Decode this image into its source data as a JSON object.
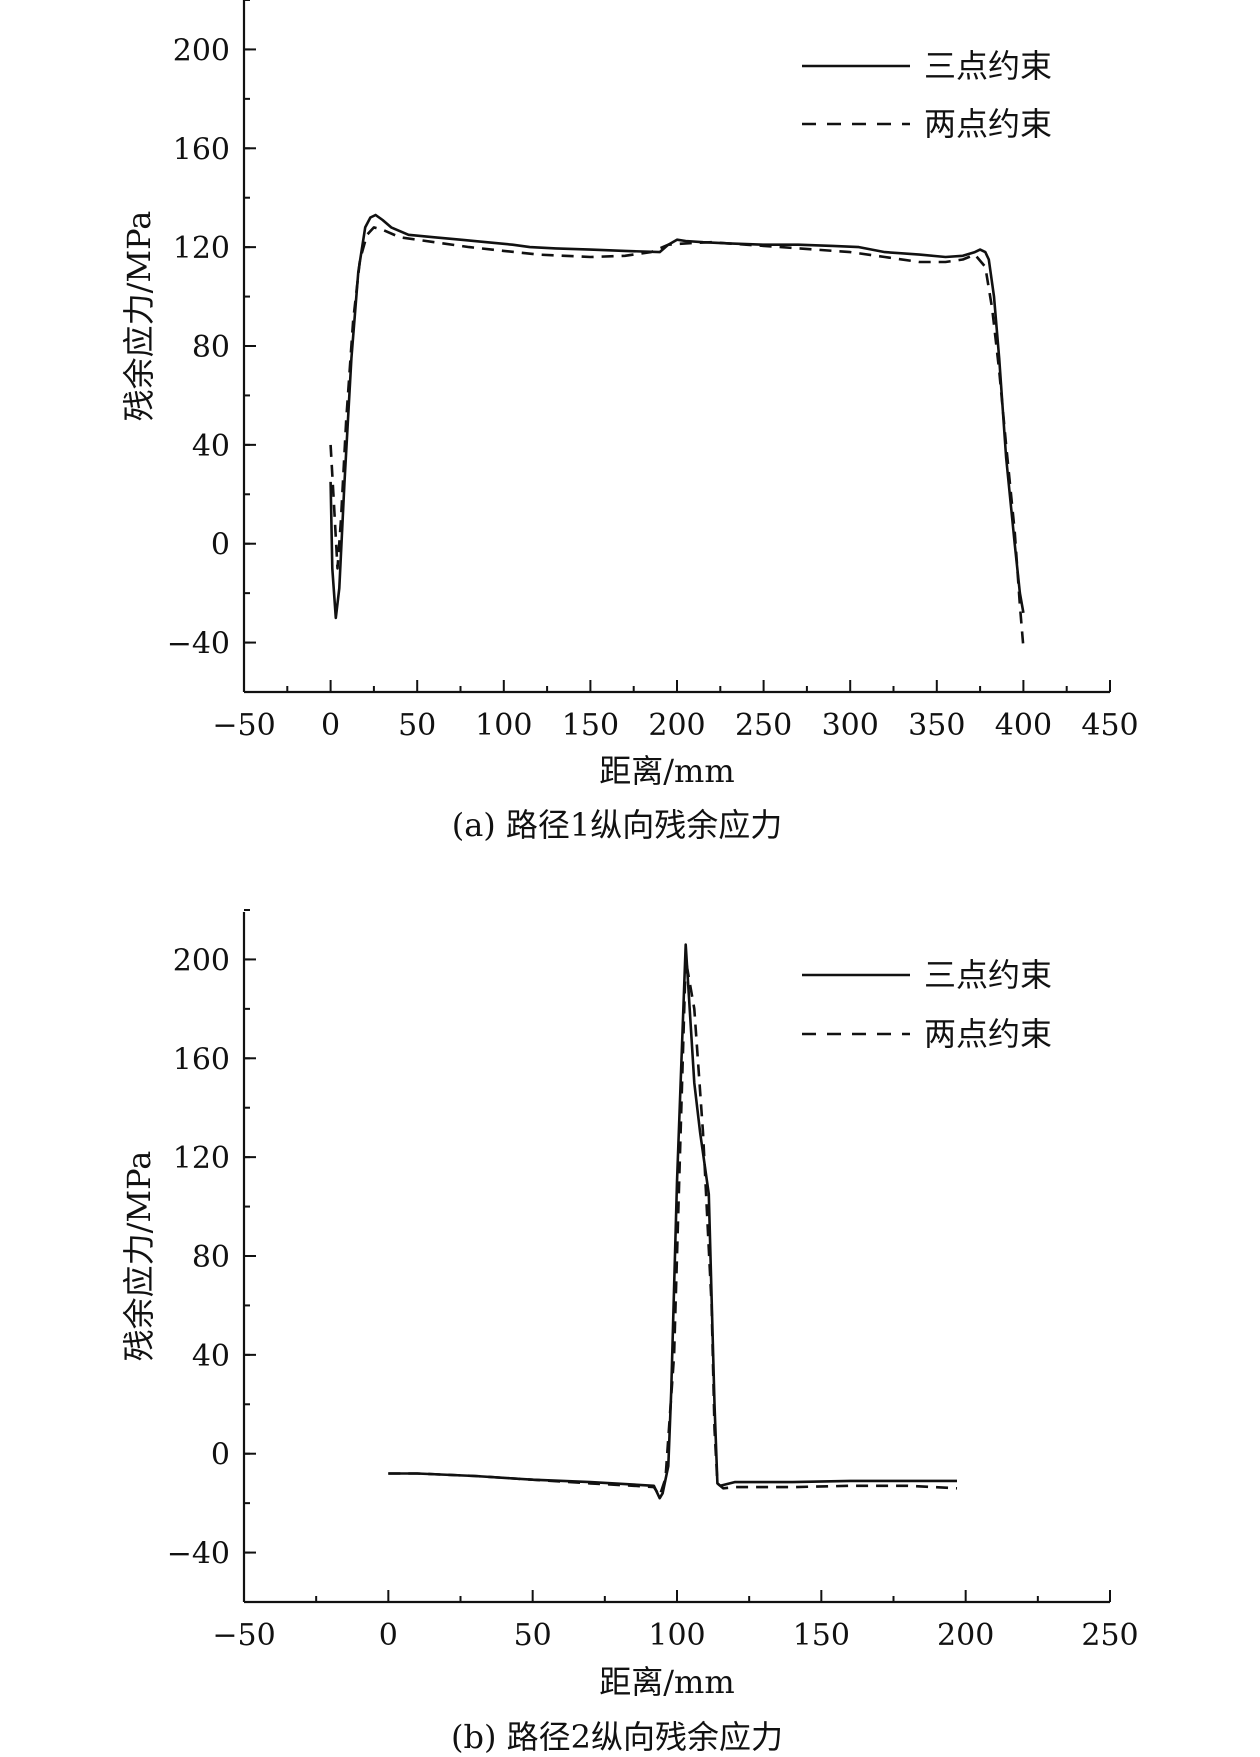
{
  "chart_data": [
    {
      "type": "line",
      "caption": "(a) 路径1纵向残余应力",
      "xlabel": "距离/mm",
      "ylabel": "残余应力/MPa",
      "xlim": [
        -50,
        450
      ],
      "ylim": [
        -60,
        220
      ],
      "xticks": [
        -50,
        0,
        50,
        100,
        150,
        200,
        250,
        300,
        350,
        400,
        450
      ],
      "xtick_labels": [
        "−50",
        "0",
        "50",
        "100",
        "150",
        "200",
        "250",
        "300",
        "350",
        "400",
        "450"
      ],
      "yticks": [
        -40,
        0,
        40,
        80,
        120,
        160,
        200
      ],
      "ytick_labels": [
        "−40",
        "0",
        "40",
        "80",
        "120",
        "160",
        "200"
      ],
      "legend_position": "top-right",
      "grid": false,
      "series": [
        {
          "name": "三点约束",
          "style": "solid",
          "x": [
            0,
            1,
            3,
            5,
            8,
            12,
            16,
            20,
            23,
            26,
            30,
            35,
            45,
            60,
            75,
            90,
            105,
            115,
            130,
            150,
            170,
            190,
            195,
            200,
            205,
            215,
            230,
            250,
            270,
            290,
            305,
            320,
            340,
            355,
            365,
            372,
            375,
            378,
            380,
            383,
            386,
            390,
            395,
            398,
            400
          ],
          "y": [
            25,
            -10,
            -30,
            -18,
            25,
            75,
            110,
            128,
            132,
            133,
            131,
            128,
            125,
            124,
            123,
            122,
            121,
            120,
            119.5,
            119,
            118.5,
            118,
            121,
            123,
            122.5,
            122,
            121.5,
            121,
            121,
            120.5,
            120,
            118,
            117,
            116,
            116.5,
            118,
            119,
            118,
            115,
            100,
            75,
            35,
            0,
            -20,
            -28
          ]
        },
        {
          "name": "两点约束",
          "style": "dashed",
          "x": [
            0,
            2,
            4,
            6,
            9,
            13,
            17,
            21,
            25,
            30,
            40,
            60,
            80,
            100,
            120,
            150,
            170,
            185,
            195,
            205,
            220,
            240,
            260,
            280,
            300,
            320,
            340,
            355,
            365,
            372,
            378,
            382,
            386,
            390,
            395,
            398,
            400
          ],
          "y": [
            40,
            15,
            -10,
            10,
            50,
            90,
            115,
            125,
            128,
            127,
            124,
            122,
            120,
            118.5,
            117,
            116,
            116.5,
            118,
            121,
            121.5,
            122,
            121,
            120,
            119,
            118,
            116,
            114,
            114,
            115,
            117,
            112,
            95,
            70,
            40,
            5,
            -25,
            -42
          ]
        }
      ]
    },
    {
      "type": "line",
      "caption": "(b) 路径2纵向残余应力",
      "xlabel": "距离/mm",
      "ylabel": "残余应力/MPa",
      "xlim": [
        -50,
        250
      ],
      "ylim": [
        -60,
        220
      ],
      "xticks": [
        -50,
        0,
        50,
        100,
        150,
        200,
        250
      ],
      "xtick_labels": [
        "−50",
        "0",
        "50",
        "100",
        "150",
        "200",
        "250"
      ],
      "yticks": [
        -40,
        0,
        40,
        80,
        120,
        160,
        200
      ],
      "ytick_labels": [
        "−40",
        "0",
        "40",
        "80",
        "120",
        "160",
        "200"
      ],
      "legend_position": "top-right",
      "grid": false,
      "series": [
        {
          "name": "三点约束",
          "style": "solid",
          "x": [
            0,
            10,
            30,
            50,
            70,
            85,
            92,
            94,
            95,
            97,
            98,
            100,
            103,
            106,
            108,
            111,
            113,
            114,
            115,
            120,
            140,
            160,
            180,
            197
          ],
          "y": [
            -8,
            -8,
            -9,
            -10.5,
            -11.5,
            -12.5,
            -13,
            -18,
            -16,
            -5,
            25,
            110,
            206,
            150,
            130,
            105,
            20,
            -12,
            -13,
            -11.5,
            -11.5,
            -11,
            -11,
            -11
          ]
        },
        {
          "name": "两点约束",
          "style": "dashed",
          "x": [
            0,
            10,
            30,
            50,
            70,
            85,
            92,
            94,
            96,
            99,
            103,
            106,
            109,
            112,
            113,
            114,
            116,
            120,
            140,
            160,
            180,
            197
          ],
          "y": [
            -8,
            -8,
            -9,
            -10.5,
            -12,
            -13,
            -13.5,
            -17,
            -10,
            40,
            200,
            180,
            130,
            60,
            10,
            -12,
            -14,
            -13.5,
            -13.5,
            -13,
            -13,
            -14
          ]
        }
      ]
    }
  ]
}
